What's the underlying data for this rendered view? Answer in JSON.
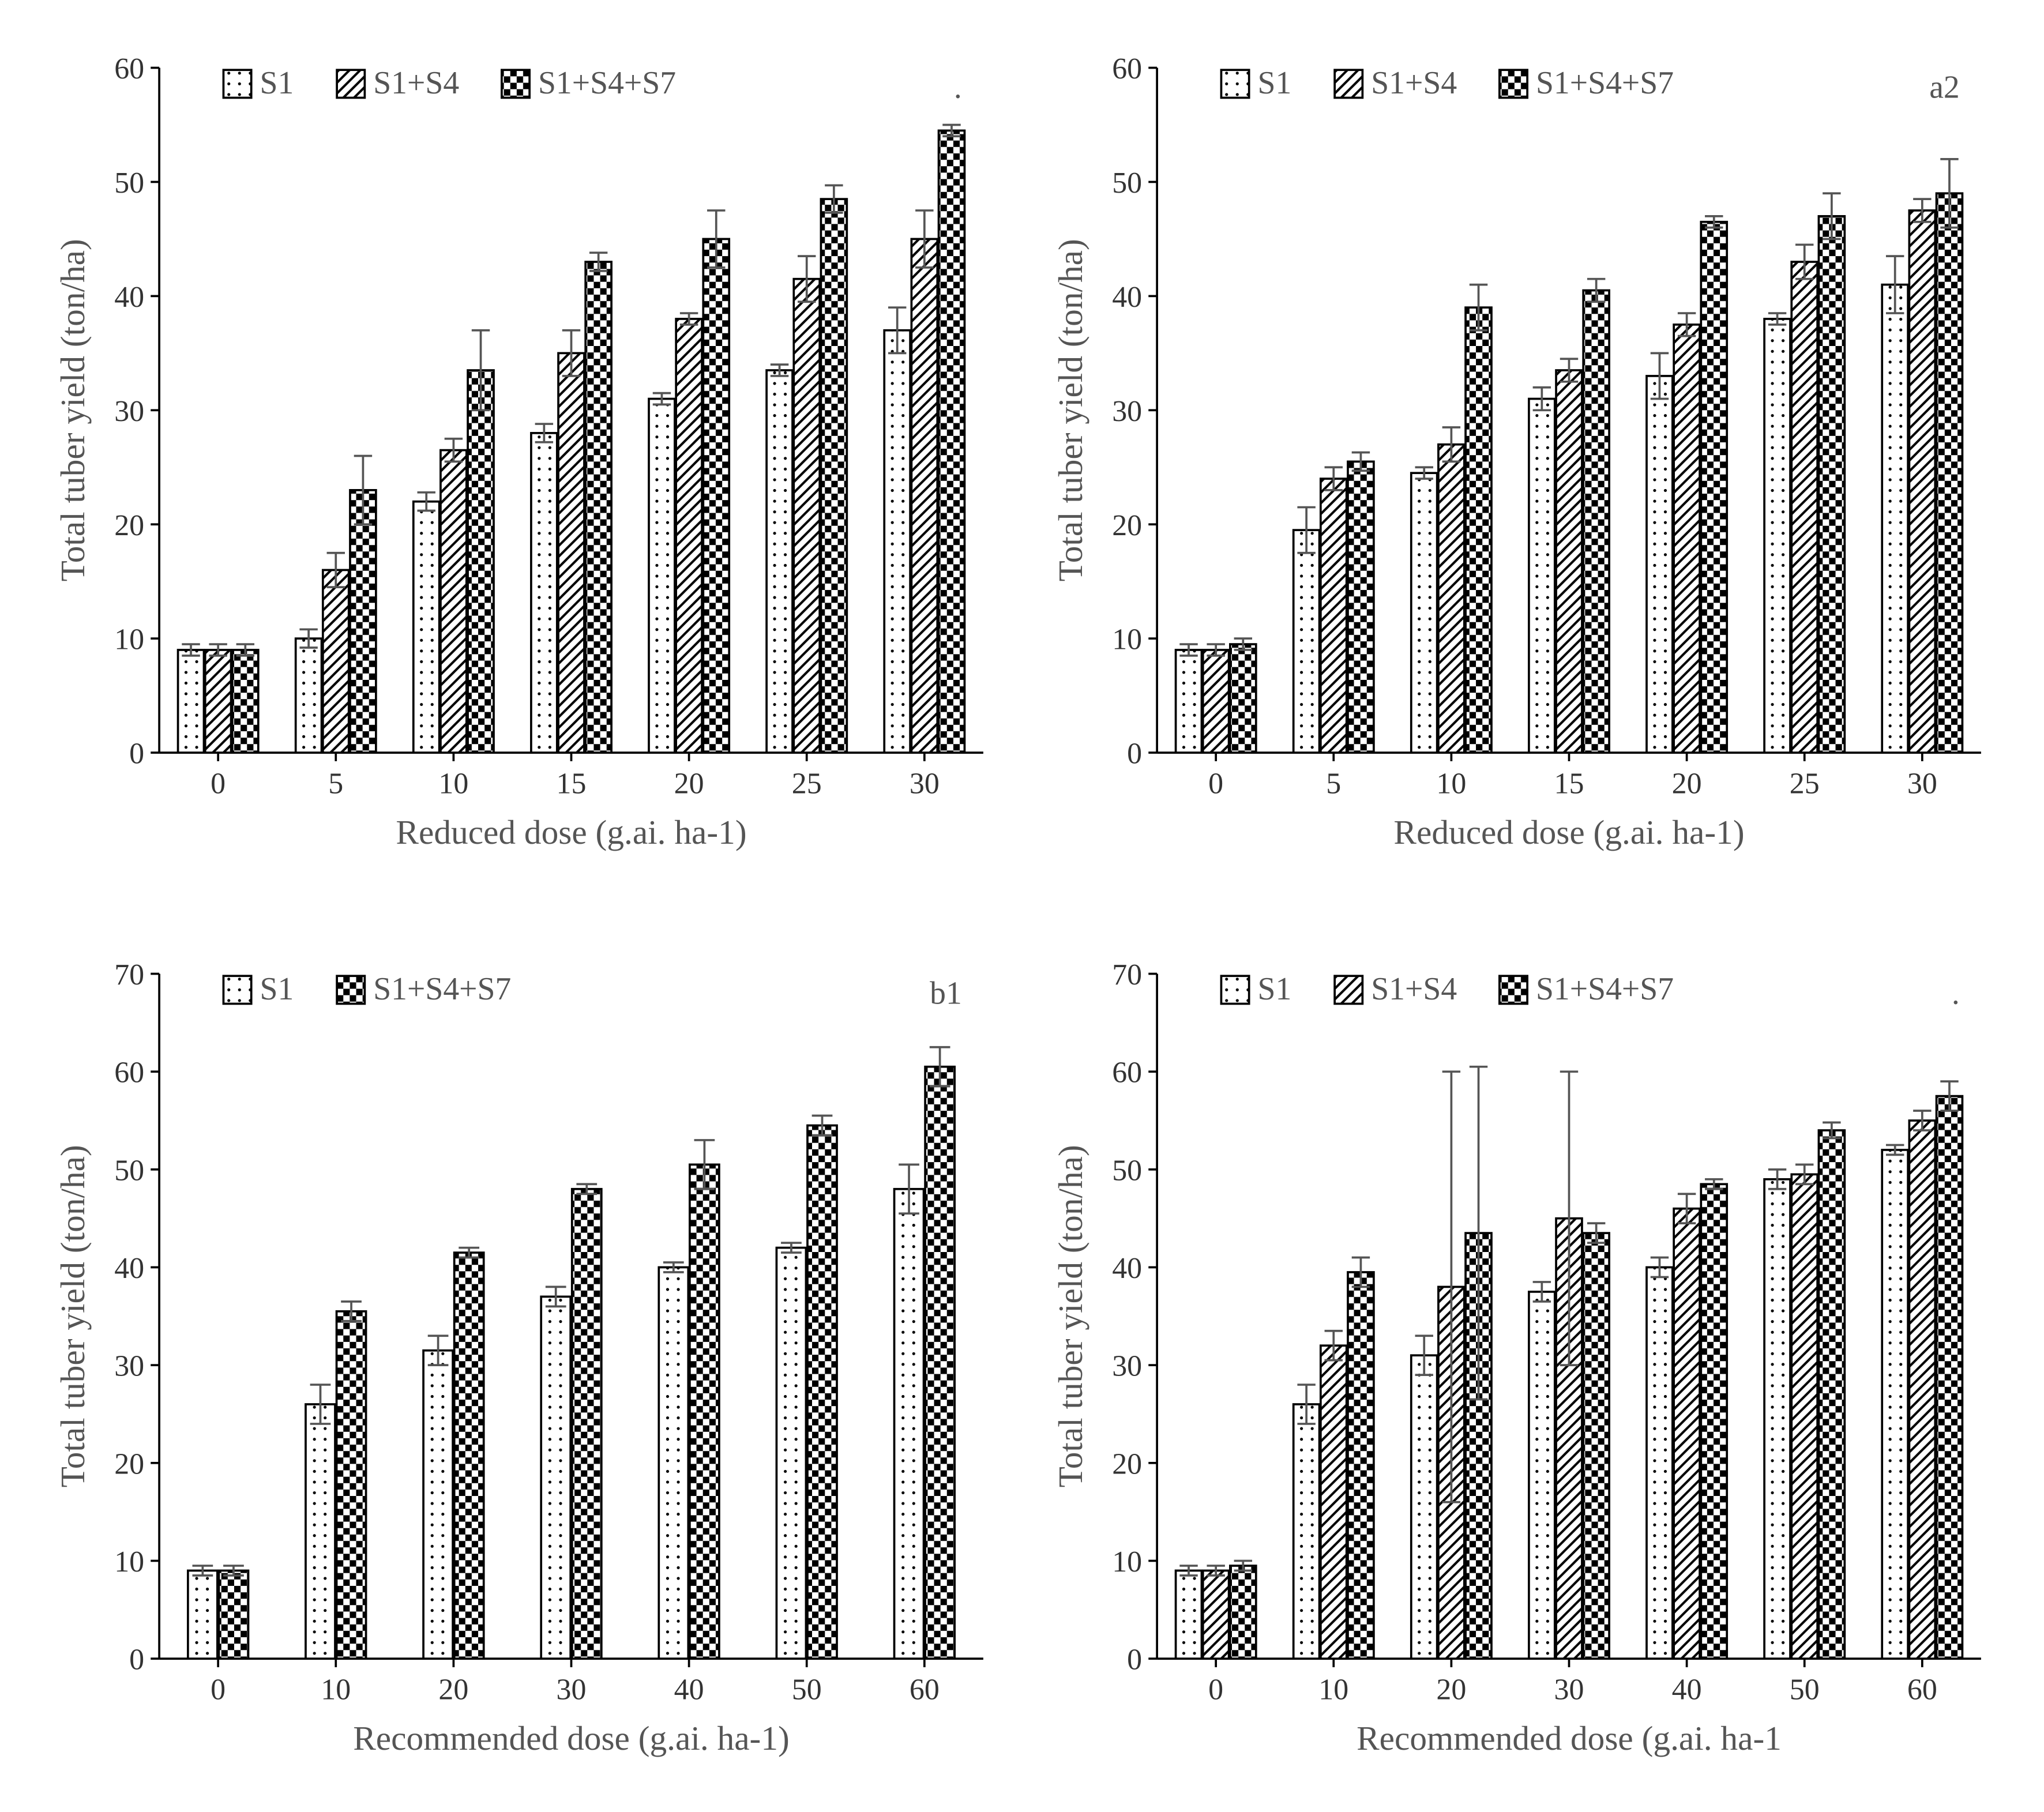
{
  "colors": {
    "axis": "#000000",
    "text": "#555555",
    "tick": "#333333",
    "bg": "#ffffff",
    "bar_border": "#000000",
    "err": "#555555"
  },
  "patterns": {
    "s1": "dots",
    "s14": "diag",
    "s147": "checker"
  },
  "panels": [
    {
      "id": "a1",
      "tag": ".",
      "y_title": "Total tuber yield (ton/ha)",
      "x_title": "Reduced dose (g.ai. ha-1)",
      "ylim": [
        0,
        60
      ],
      "ytick_step": 10,
      "categories": [
        "0",
        "5",
        "10",
        "15",
        "20",
        "25",
        "30"
      ],
      "legend": [
        {
          "label": "S1",
          "pattern": "s1"
        },
        {
          "label": "S1+S4",
          "pattern": "s14"
        },
        {
          "label": "S1+S4+S7",
          "pattern": "s147"
        }
      ],
      "series": [
        {
          "pattern": "s1",
          "values": [
            9,
            10,
            22,
            28,
            31,
            33.5,
            37
          ],
          "err": [
            0.5,
            0.8,
            0.8,
            0.8,
            0.5,
            0.5,
            2
          ]
        },
        {
          "pattern": "s14",
          "values": [
            9,
            16,
            26.5,
            35,
            38,
            41.5,
            45
          ],
          "err": [
            0.5,
            1.5,
            1,
            2,
            0.5,
            2,
            2.5
          ]
        },
        {
          "pattern": "s147",
          "values": [
            9,
            23,
            33.5,
            43,
            45,
            48.5,
            54.5
          ],
          "err": [
            0.5,
            3,
            3.5,
            0.8,
            2.5,
            1.2,
            0.5
          ]
        }
      ],
      "bar_width": 0.22,
      "tick_fontsize": 28,
      "title_fontsize": 32,
      "legend_fontsize": 30
    },
    {
      "id": "a2",
      "tag": "a2",
      "y_title": "Total tuber yield (ton/ha)",
      "x_title": "Reduced dose (g.ai. ha-1)",
      "ylim": [
        0,
        60
      ],
      "ytick_step": 10,
      "categories": [
        "0",
        "5",
        "10",
        "15",
        "20",
        "25",
        "30"
      ],
      "legend": [
        {
          "label": "S1",
          "pattern": "s1"
        },
        {
          "label": "S1+S4",
          "pattern": "s14"
        },
        {
          "label": "S1+S4+S7",
          "pattern": "s147"
        }
      ],
      "series": [
        {
          "pattern": "s1",
          "values": [
            9,
            19.5,
            24.5,
            31,
            33,
            38,
            41
          ],
          "err": [
            0.5,
            2,
            0.5,
            1,
            2,
            0.5,
            2.5
          ]
        },
        {
          "pattern": "s14",
          "values": [
            9,
            24,
            27,
            33.5,
            37.5,
            43,
            47.5
          ],
          "err": [
            0.5,
            1,
            1.5,
            1,
            1,
            1.5,
            1
          ]
        },
        {
          "pattern": "s147",
          "values": [
            9.5,
            25.5,
            39,
            40.5,
            46.5,
            47,
            49
          ],
          "err": [
            0.5,
            0.8,
            2,
            1,
            0.5,
            2,
            3
          ]
        }
      ],
      "bar_width": 0.22,
      "tick_fontsize": 28,
      "title_fontsize": 32,
      "legend_fontsize": 30
    },
    {
      "id": "b1",
      "tag": "b1",
      "y_title": "Total tuber yield (ton/ha)",
      "x_title": "Recommended dose (g.ai. ha-1)",
      "ylim": [
        0,
        70
      ],
      "ytick_step": 10,
      "categories": [
        "0",
        "10",
        "20",
        "30",
        "40",
        "50",
        "60"
      ],
      "legend": [
        {
          "label": "S1",
          "pattern": "s1"
        },
        {
          "label": "S1+S4+S7",
          "pattern": "s147"
        }
      ],
      "series": [
        {
          "pattern": "s1",
          "values": [
            9,
            26,
            31.5,
            37,
            40,
            42,
            48
          ],
          "err": [
            0.5,
            2,
            1.5,
            1,
            0.5,
            0.5,
            2.5
          ]
        },
        {
          "pattern": "s147",
          "values": [
            9,
            35.5,
            41.5,
            48,
            50.5,
            54.5,
            60.5
          ],
          "err": [
            0.5,
            1,
            0.5,
            0.5,
            2.5,
            1,
            2
          ]
        }
      ],
      "bar_width": 0.25,
      "tick_fontsize": 28,
      "title_fontsize": 32,
      "legend_fontsize": 30
    },
    {
      "id": "b2",
      "tag": ".",
      "y_title": "Total tuber yield (ton/ha)",
      "x_title": "Recommended dose (g.ai. ha-1",
      "ylim": [
        0,
        70
      ],
      "ytick_step": 10,
      "categories": [
        "0",
        "10",
        "20",
        "30",
        "40",
        "50",
        "60"
      ],
      "legend": [
        {
          "label": "S1",
          "pattern": "s1"
        },
        {
          "label": "S1+S4",
          "pattern": "s14"
        },
        {
          "label": "S1+S4+S7",
          "pattern": "s147"
        }
      ],
      "series": [
        {
          "pattern": "s1",
          "values": [
            9,
            26,
            31,
            37.5,
            40,
            49,
            52
          ],
          "err": [
            0.5,
            2,
            2,
            1,
            1,
            1,
            0.5
          ]
        },
        {
          "pattern": "s14",
          "values": [
            9,
            32,
            38,
            45,
            46,
            49.5,
            55
          ],
          "err": [
            0.5,
            1.5,
            22,
            15,
            1.5,
            1,
            1
          ]
        },
        {
          "pattern": "s147",
          "values": [
            9.5,
            39.5,
            43.5,
            43.5,
            48.5,
            54,
            57.5
          ],
          "err": [
            0.5,
            1.5,
            17,
            1,
            0.5,
            0.8,
            1.5
          ]
        }
      ],
      "bar_width": 0.22,
      "tick_fontsize": 28,
      "title_fontsize": 32,
      "legend_fontsize": 30
    }
  ]
}
